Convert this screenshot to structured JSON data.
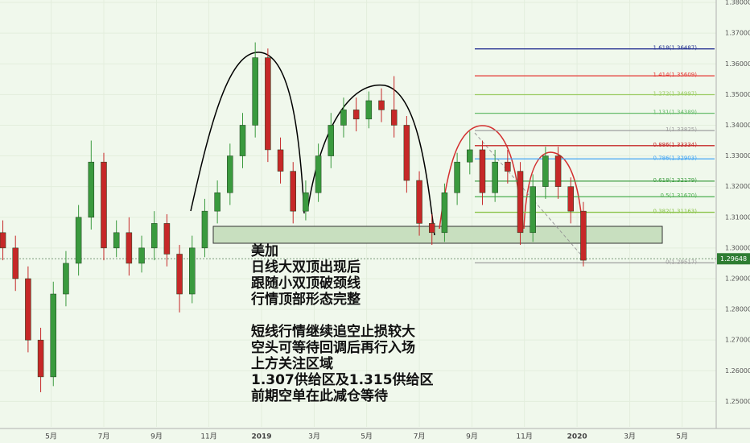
{
  "chart_data": {
    "type": "candlestick",
    "x": [
      2018.18,
      2018.22,
      2018.26,
      2018.3,
      2018.34,
      2018.38,
      2018.42,
      2018.46,
      2018.5,
      2018.54,
      2018.58,
      2018.62,
      2018.66,
      2018.7,
      2018.74,
      2018.78,
      2018.82,
      2018.86,
      2018.9,
      2018.94,
      2018.98,
      2019.02,
      2019.06,
      2019.1,
      2019.14,
      2019.18,
      2019.22,
      2019.26,
      2019.3,
      2019.34,
      2019.38,
      2019.42,
      2019.46,
      2019.5,
      2019.54,
      2019.58,
      2019.62,
      2019.66,
      2019.7,
      2019.74,
      2019.78,
      2019.82,
      2019.86,
      2019.9,
      2019.94,
      2019.98,
      2020.02
    ],
    "open": [
      1.305,
      1.3,
      1.29,
      1.27,
      1.258,
      1.285,
      1.295,
      1.31,
      1.328,
      1.3,
      1.305,
      1.295,
      1.3,
      1.308,
      1.298,
      1.285,
      1.3,
      1.312,
      1.318,
      1.33,
      1.34,
      1.362,
      1.332,
      1.325,
      1.312,
      1.318,
      1.33,
      1.34,
      1.345,
      1.342,
      1.348,
      1.345,
      1.34,
      1.322,
      1.308,
      1.305,
      1.318,
      1.328,
      1.332,
      1.318,
      1.328,
      1.325,
      1.305,
      1.32,
      1.33,
      1.32,
      1.312
    ],
    "high": [
      1.309,
      1.304,
      1.294,
      1.274,
      1.289,
      1.299,
      1.314,
      1.335,
      1.331,
      1.309,
      1.31,
      1.304,
      1.312,
      1.311,
      1.301,
      1.304,
      1.316,
      1.322,
      1.334,
      1.344,
      1.367,
      1.365,
      1.336,
      1.328,
      1.322,
      1.334,
      1.344,
      1.349,
      1.349,
      1.351,
      1.352,
      1.356,
      1.343,
      1.325,
      1.311,
      1.321,
      1.331,
      1.338,
      1.335,
      1.332,
      1.332,
      1.328,
      1.324,
      1.333,
      1.333,
      1.323,
      1.315
    ],
    "low": [
      1.296,
      1.286,
      1.266,
      1.253,
      1.255,
      1.281,
      1.291,
      1.306,
      1.296,
      1.297,
      1.291,
      1.292,
      1.296,
      1.294,
      1.279,
      1.282,
      1.297,
      1.308,
      1.314,
      1.326,
      1.336,
      1.328,
      1.321,
      1.308,
      1.309,
      1.315,
      1.326,
      1.336,
      1.338,
      1.339,
      1.341,
      1.336,
      1.318,
      1.304,
      1.301,
      1.302,
      1.314,
      1.324,
      1.314,
      1.315,
      1.321,
      1.301,
      1.302,
      1.316,
      1.316,
      1.308,
      1.294
    ],
    "close": [
      1.3,
      1.29,
      1.27,
      1.258,
      1.285,
      1.295,
      1.31,
      1.328,
      1.3,
      1.305,
      1.295,
      1.3,
      1.308,
      1.298,
      1.285,
      1.3,
      1.312,
      1.318,
      1.33,
      1.34,
      1.362,
      1.332,
      1.325,
      1.312,
      1.318,
      1.33,
      1.34,
      1.345,
      1.342,
      1.348,
      1.345,
      1.34,
      1.322,
      1.308,
      1.305,
      1.318,
      1.328,
      1.332,
      1.318,
      1.328,
      1.325,
      1.305,
      1.32,
      1.33,
      1.32,
      1.312,
      1.296
    ],
    "up_color": "#3a9a3e",
    "down_color": "#c62828",
    "xlim": [
      2018.171,
      2020.441
    ],
    "xticks": [
      {
        "value": 2018.333,
        "label": "5月"
      },
      {
        "value": 2018.5,
        "label": "7月"
      },
      {
        "value": 2018.667,
        "label": "9月"
      },
      {
        "value": 2018.833,
        "label": "11月"
      },
      2019,
      {
        "value": 2019.167,
        "label": "3月"
      },
      {
        "value": 2019.333,
        "label": "5月"
      },
      {
        "value": 2019.5,
        "label": "7月"
      },
      {
        "value": 2019.667,
        "label": "9月"
      },
      {
        "value": 2019.833,
        "label": "11月"
      },
      2020,
      {
        "value": 2020.167,
        "label": "3月"
      },
      {
        "value": 2020.333,
        "label": "5月"
      }
    ],
    "ylim": [
      1.2417,
      1.3808
    ],
    "yticks": [
      {
        "value": 1.25,
        "label": "1.25000"
      },
      {
        "value": 1.26,
        "label": "1.26000"
      },
      {
        "value": 1.27,
        "label": "1.27000"
      },
      {
        "value": 1.28,
        "label": "1.28000"
      },
      {
        "value": 1.29,
        "label": "1.29000"
      },
      {
        "value": 1.3,
        "label": "1.30000"
      },
      {
        "value": 1.31,
        "label": "1.31000"
      },
      {
        "value": 1.32,
        "label": "1.32000"
      },
      {
        "value": 1.33,
        "label": "1.33000"
      },
      {
        "value": 1.34,
        "label": "1.34000"
      },
      {
        "value": 1.35,
        "label": "1.35000"
      },
      {
        "value": 1.36,
        "label": "1.36000"
      },
      {
        "value": 1.37,
        "label": "1.37000"
      },
      {
        "value": 1.38,
        "label": "1.38000"
      }
    ],
    "grid": true,
    "last_price": 1.29648,
    "last_price_color": "#2e7d32",
    "fib_levels": [
      {
        "label": "1.618(1.36487)",
        "value": 1.36487,
        "color": "#283593"
      },
      {
        "label": "1.414(1.35609)",
        "value": 1.35609,
        "color": "#e53935"
      },
      {
        "label": "1.272(1.34997)",
        "value": 1.34997,
        "color": "#9ccc65"
      },
      {
        "label": "1.131(1.34389)",
        "value": 1.34389,
        "color": "#66bb6a"
      },
      {
        "label": "1(1.33825)",
        "value": 1.33825,
        "color": "#9e9e9e"
      },
      {
        "label": "0.886(1.33334)",
        "value": 1.33334,
        "color": "#c62828"
      },
      {
        "label": "0.786(1.32903)",
        "value": 1.32903,
        "color": "#42a5f5"
      },
      {
        "label": "0.618(1.32179)",
        "value": 1.32179,
        "color": "#43a047"
      },
      {
        "label": "0.5(1.31670)",
        "value": 1.3167,
        "color": "#4caf50"
      },
      {
        "label": "0.382(1.31163)",
        "value": 1.31163,
        "color": "#8bc34a"
      },
      {
        "label": "0(1.29517)",
        "value": 1.29517,
        "color": "#9e9e9e"
      }
    ],
    "annotations": [
      [
        "美加",
        "日线大双顶出现后",
        "跟随小双顶破颈线",
        "行情顶部形态完整"
      ],
      [
        "短线行情继续追空止损较大",
        "空头可等待回调后再行入场",
        "上方关注区域",
        "1.307供给区及1.315供给区",
        "前期空单在此减仓等待"
      ]
    ]
  }
}
